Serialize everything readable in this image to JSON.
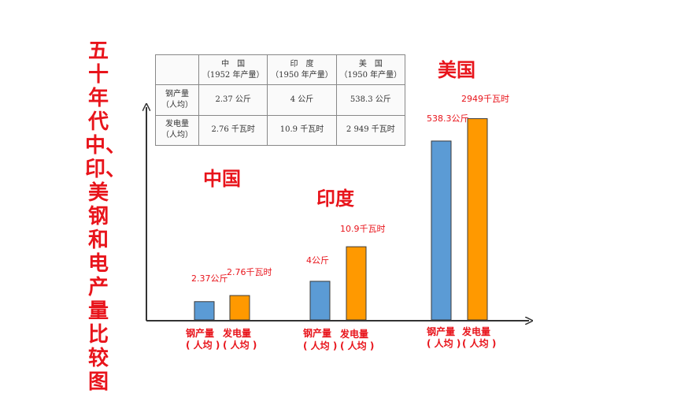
{
  "vertical_title": "五十年代中、印、美钢和电产量比较图",
  "table": {
    "header": [
      "",
      "中　国\n（1952 年产量）",
      "印　度\n（1950 年产量）",
      "美　国\n（1950 年产量）"
    ],
    "rows": [
      [
        "钢产量\n（人均）",
        "2.37 公斤",
        "4 公斤",
        "538.3 公斤"
      ],
      [
        "发电量\n（人均）",
        "2.76 千瓦时",
        "10.9 千瓦时",
        "2 949 千瓦时"
      ]
    ]
  },
  "chart_data": {
    "type": "bar",
    "categories": [
      "中国",
      "印度",
      "美国"
    ],
    "series": [
      {
        "label_line1": "钢产量",
        "label_line2": "( 人均 )",
        "values": [
          2.37,
          4,
          538.3
        ],
        "value_labels": [
          "2.37公斤",
          "4公斤",
          "538.3公斤"
        ],
        "color": "#5b9bd5"
      },
      {
        "label_line1": "发电量",
        "label_line2": "( 人均 )",
        "values": [
          2.76,
          10.9,
          2949
        ],
        "value_labels": [
          "2.76千瓦时",
          "10.9千瓦时",
          "2949千瓦时"
        ],
        "color": "#ff9900"
      }
    ],
    "bar_level": [
      [
        0.09,
        0.12
      ],
      [
        0.19,
        0.36
      ],
      [
        0.88,
        0.99
      ]
    ],
    "title": "",
    "xlabel": "",
    "ylabel": "",
    "category_label_color": "#e8141b",
    "value_label_color": "#e8141b",
    "axis_color": "#333333"
  }
}
